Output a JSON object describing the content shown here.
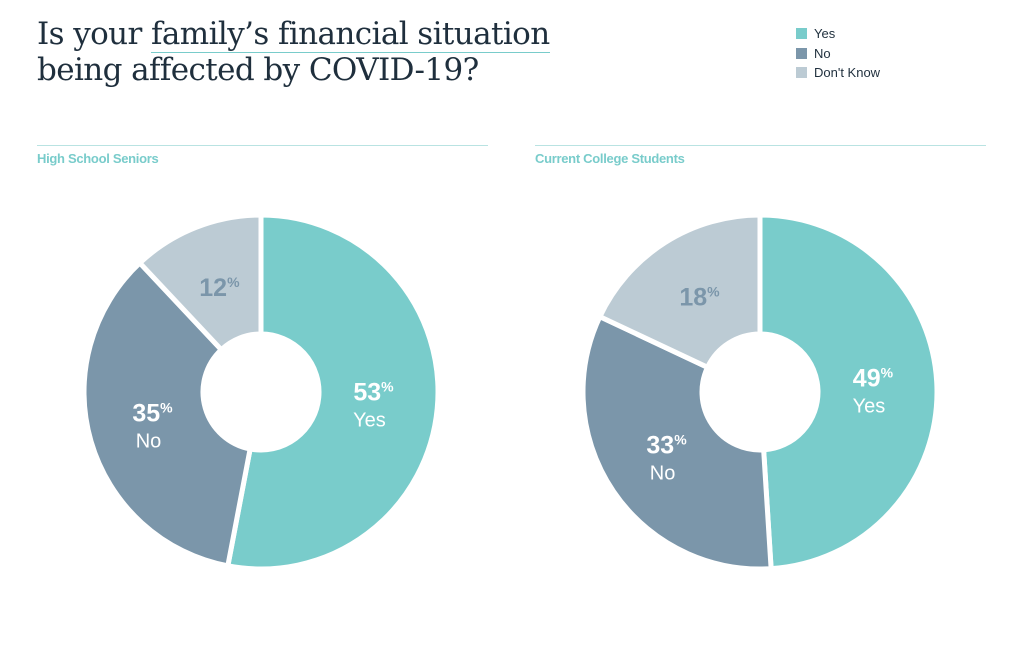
{
  "title": {
    "before": "Is your ",
    "highlight": "family’s financial situation",
    "after": " being affected by COVID-19?"
  },
  "legend": [
    {
      "label": "Yes",
      "color": "#79cccb"
    },
    {
      "label": "No",
      "color": "#7b96aa"
    },
    {
      "label": "Don't Know",
      "color": "#bccbd4"
    }
  ],
  "percent_sign": "%",
  "chart_data": [
    {
      "type": "pie",
      "variant": "donut",
      "title": "High School Seniors",
      "categories": [
        "Yes",
        "No",
        "Don't Know"
      ],
      "values": [
        53,
        35,
        12
      ],
      "value_labels": [
        "53",
        "35",
        "12"
      ],
      "colors": [
        "#79cccb",
        "#7b96aa",
        "#bccbd4"
      ],
      "label_colors": [
        "#ffffff",
        "#ffffff",
        "#7b96aa"
      ]
    },
    {
      "type": "pie",
      "variant": "donut",
      "title": "Current College Students",
      "categories": [
        "Yes",
        "No",
        "Don't Know"
      ],
      "values": [
        49,
        33,
        18
      ],
      "value_labels": [
        "49",
        "33",
        "18"
      ],
      "colors": [
        "#79cccb",
        "#7b96aa",
        "#bccbd4"
      ],
      "label_colors": [
        "#ffffff",
        "#ffffff",
        "#7b96aa"
      ]
    }
  ]
}
